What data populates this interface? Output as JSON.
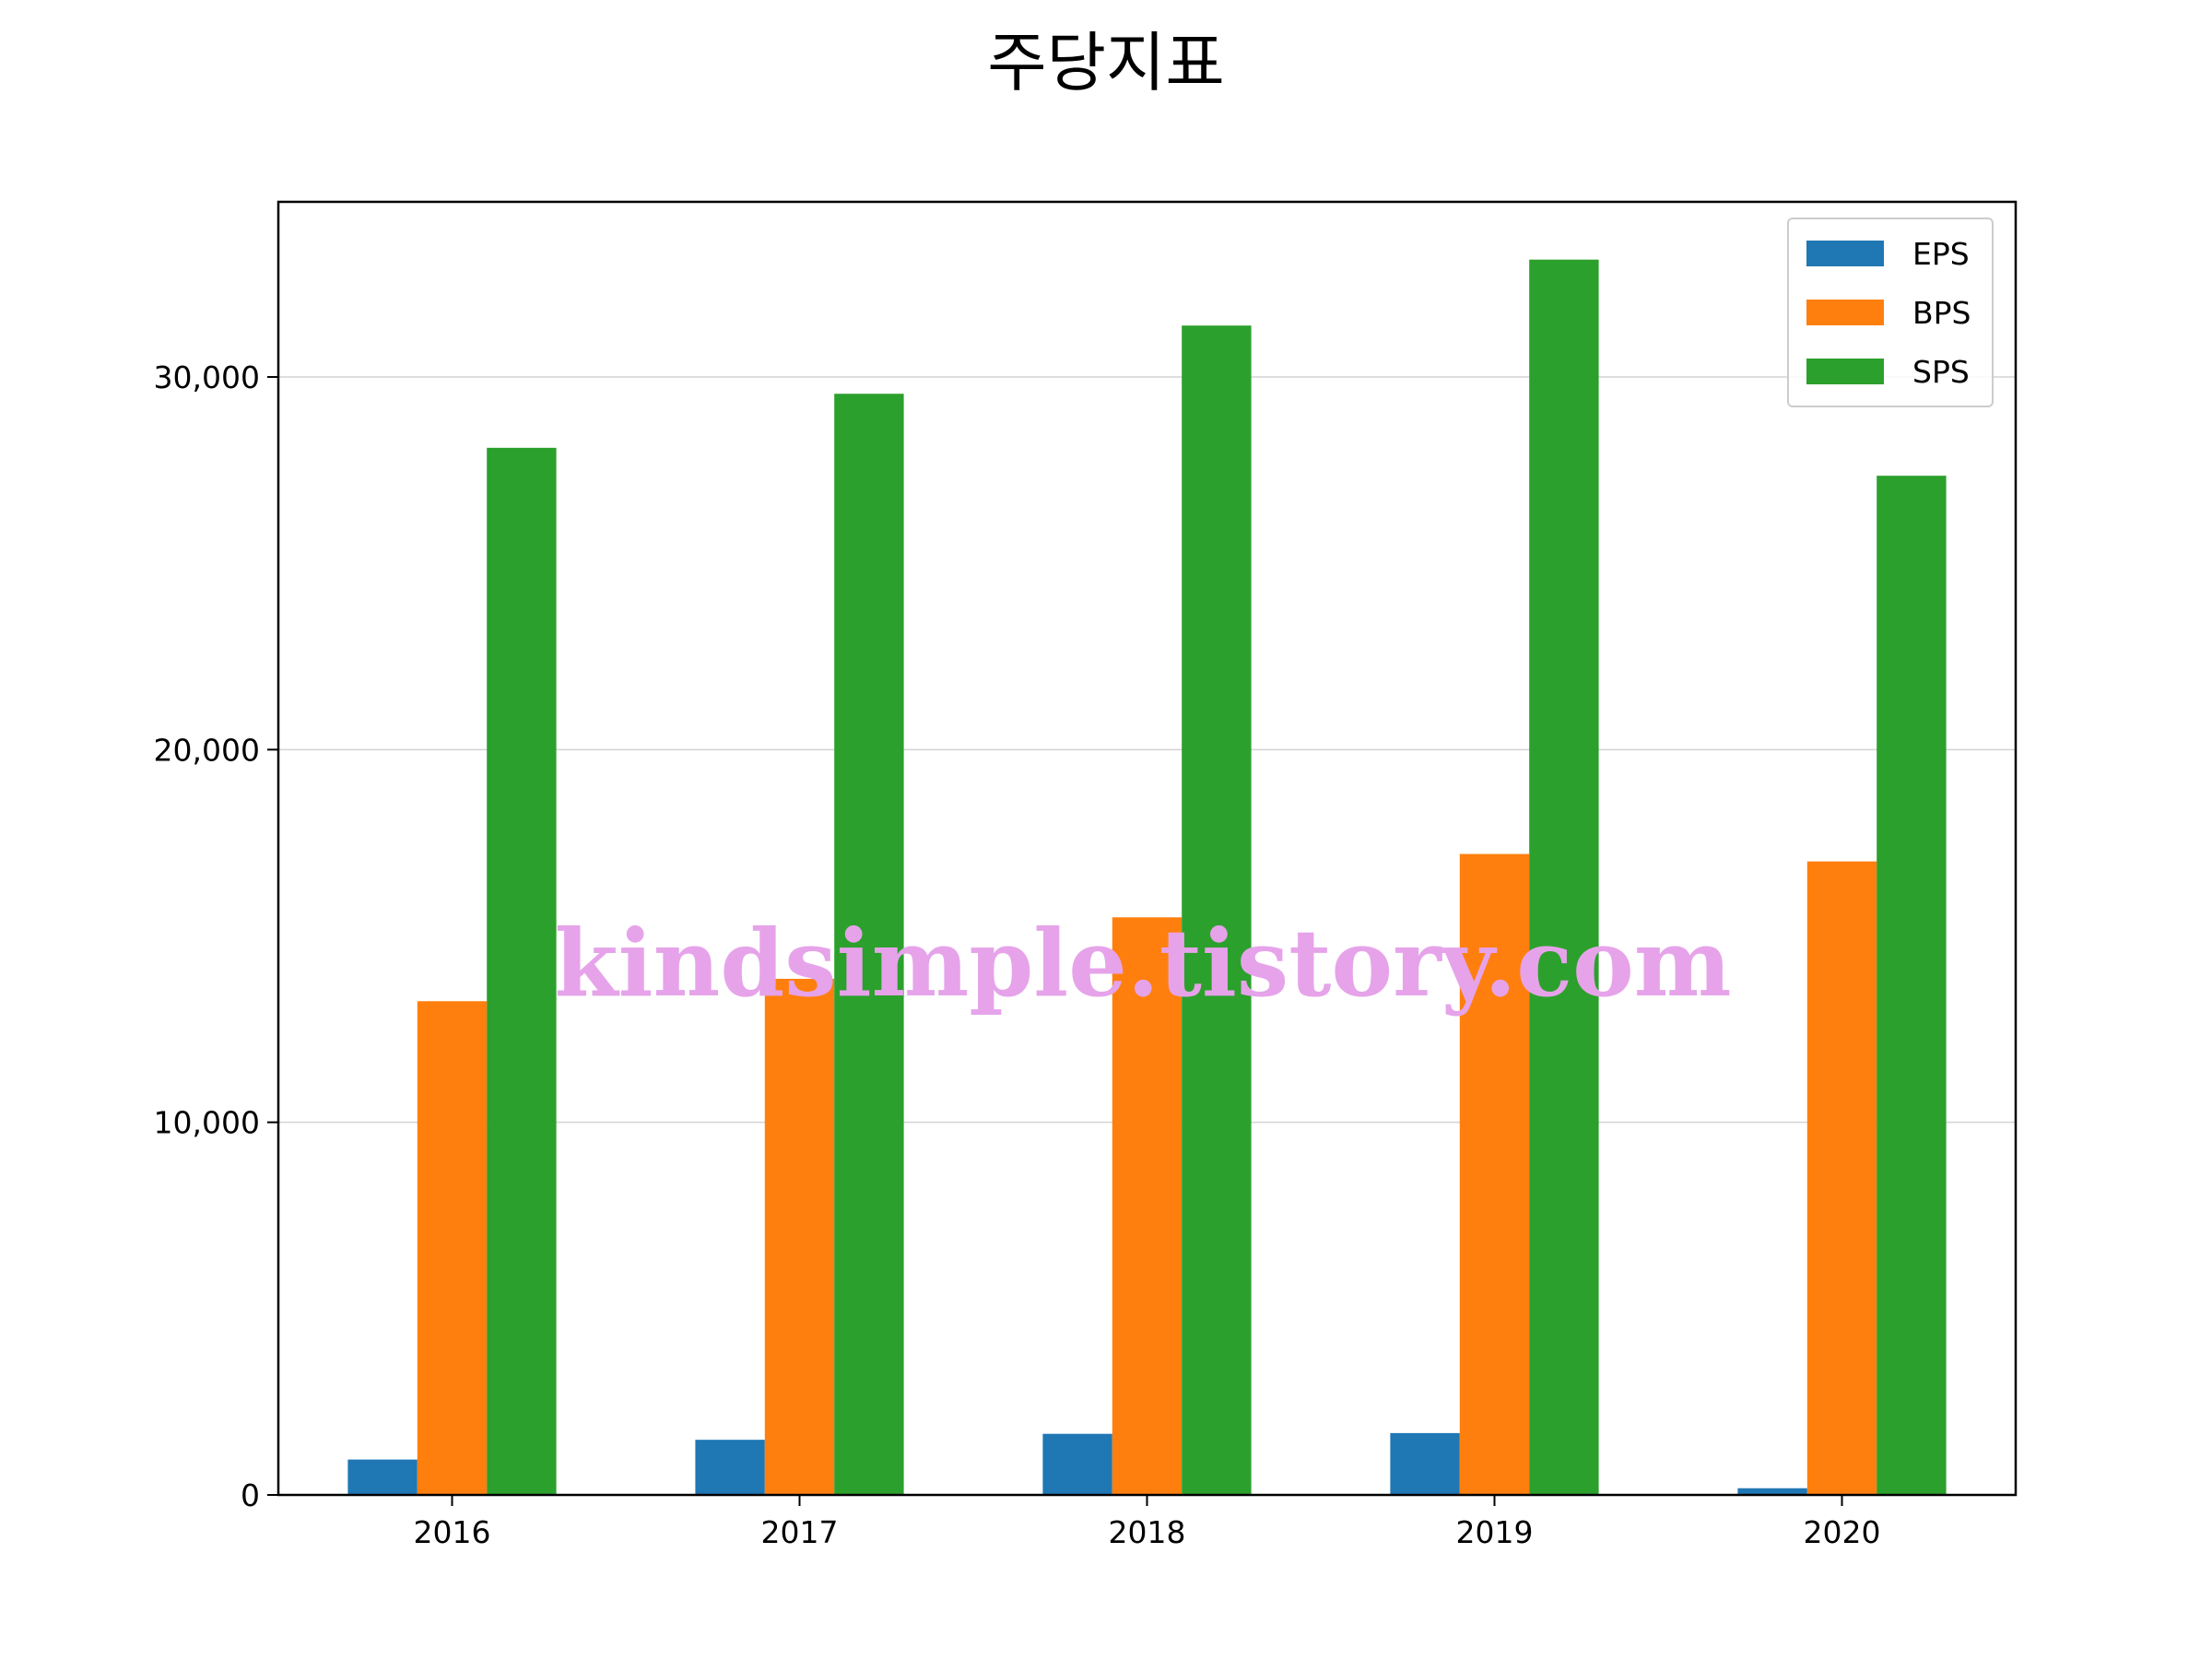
{
  "chart_data": {
    "type": "bar",
    "title": "주당지표",
    "xlabel": "",
    "ylabel": "",
    "categories": [
      "2016",
      "2017",
      "2018",
      "2019",
      "2020"
    ],
    "series": [
      {
        "name": "EPS",
        "color": "#1f77b4",
        "values": [
          950,
          1480,
          1640,
          1660,
          180
        ]
      },
      {
        "name": "BPS",
        "color": "#ff7f0e",
        "values": [
          13250,
          13850,
          15500,
          17200,
          17000
        ]
      },
      {
        "name": "SPS",
        "color": "#2ca02c",
        "values": [
          28100,
          29550,
          31380,
          33150,
          27350
        ]
      }
    ],
    "ylim": [
      0,
      34700
    ],
    "yticks": [
      0,
      10000,
      20000,
      30000
    ],
    "ytick_labels": [
      "0",
      "10,000",
      "20,000",
      "30,000"
    ],
    "grid": "y-axis",
    "legend_position": "top-right"
  },
  "watermark": "kindsimple.tistory.com",
  "watermark_color": "#e6a3ea"
}
